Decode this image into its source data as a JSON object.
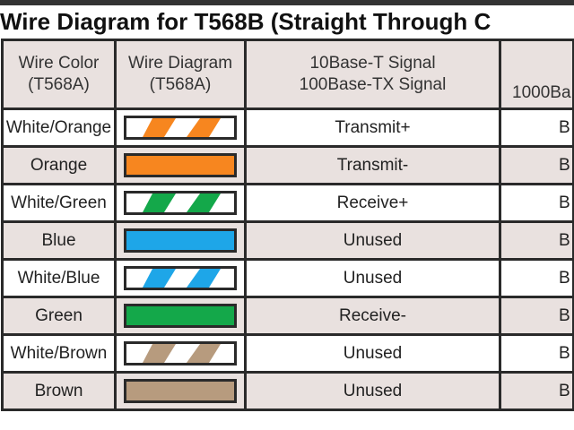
{
  "title": "Wire Diagram for T568B (Straight Through C",
  "headers": [
    "Wire Color\n(T568A)",
    "Wire Diagram\n(T568A)",
    "10Base-T Signal\n100Base-TX Signal",
    "1000Ba"
  ],
  "header_lines": [
    [
      "Wire Color",
      "(T568A)"
    ],
    [
      "Wire Diagram",
      "(T568A)"
    ],
    [
      "10Base-T Signal",
      "100Base-TX Signal"
    ],
    [
      "",
      "1000Ba"
    ]
  ],
  "rows": [
    {
      "color_name": "White/Orange",
      "wire_color": "#f7861f",
      "striped": true,
      "signal": "Transmit+",
      "gigabit": "B"
    },
    {
      "color_name": "Orange",
      "wire_color": "#f7861f",
      "striped": false,
      "signal": "Transmit-",
      "gigabit": "B"
    },
    {
      "color_name": "White/Green",
      "wire_color": "#14a84a",
      "striped": true,
      "signal": "Receive+",
      "gigabit": "B"
    },
    {
      "color_name": "Blue",
      "wire_color": "#1ea6e8",
      "striped": false,
      "signal": "Unused",
      "gigabit": "B"
    },
    {
      "color_name": "White/Blue",
      "wire_color": "#1ea6e8",
      "striped": true,
      "signal": "Unused",
      "gigabit": "B"
    },
    {
      "color_name": "Green",
      "wire_color": "#14a84a",
      "striped": false,
      "signal": "Receive-",
      "gigabit": "B"
    },
    {
      "color_name": "White/Brown",
      "wire_color": "#b79b7e",
      "striped": true,
      "signal": "Unused",
      "gigabit": "B"
    },
    {
      "color_name": "Brown",
      "wire_color": "#b79b7e",
      "striped": false,
      "signal": "Unused",
      "gigabit": "B"
    }
  ],
  "colors": {
    "row_shade": "#e9e1df",
    "border": "#2a2a2a"
  }
}
